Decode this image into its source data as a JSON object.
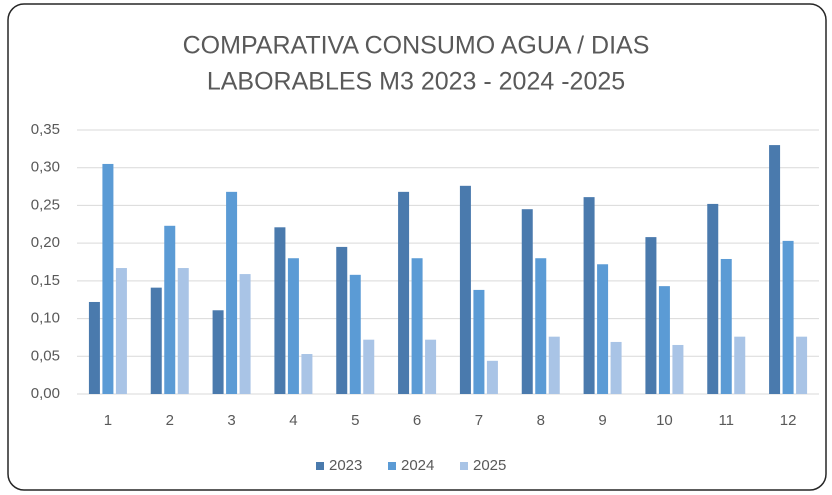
{
  "chart_data": {
    "type": "bar",
    "title": [
      "COMPARATIVA CONSUMO AGUA / DIAS",
      "LABORABLES M3 2023 - 2024 -2025"
    ],
    "categories": [
      "1",
      "2",
      "3",
      "4",
      "5",
      "6",
      "7",
      "8",
      "9",
      "10",
      "11",
      "12"
    ],
    "series": [
      {
        "name": "2023",
        "color": "#4a7aad",
        "values": [
          0.122,
          0.141,
          0.111,
          0.221,
          0.195,
          0.268,
          0.276,
          0.245,
          0.261,
          0.208,
          0.252,
          0.33
        ]
      },
      {
        "name": "2024",
        "color": "#5b9bd5",
        "values": [
          0.305,
          0.223,
          0.268,
          0.18,
          0.158,
          0.18,
          0.138,
          0.18,
          0.172,
          0.143,
          0.179,
          0.203
        ]
      },
      {
        "name": "2025",
        "color": "#a9c4e6",
        "values": [
          0.167,
          0.167,
          0.159,
          0.053,
          0.072,
          0.072,
          0.044,
          0.076,
          0.069,
          0.065,
          0.076,
          0.076
        ]
      }
    ],
    "ylim": [
      0,
      0.35
    ],
    "yticks": [
      {
        "value": 0,
        "label": "0,00"
      },
      {
        "value": 0.05,
        "label": "0,05"
      },
      {
        "value": 0.1,
        "label": "0,10"
      },
      {
        "value": 0.15,
        "label": "0,15"
      },
      {
        "value": 0.2,
        "label": "0,20"
      },
      {
        "value": 0.25,
        "label": "0,25"
      },
      {
        "value": 0.3,
        "label": "0,30"
      },
      {
        "value": 0.35,
        "label": "0,35"
      }
    ],
    "grid": true,
    "legend": "bottom"
  }
}
